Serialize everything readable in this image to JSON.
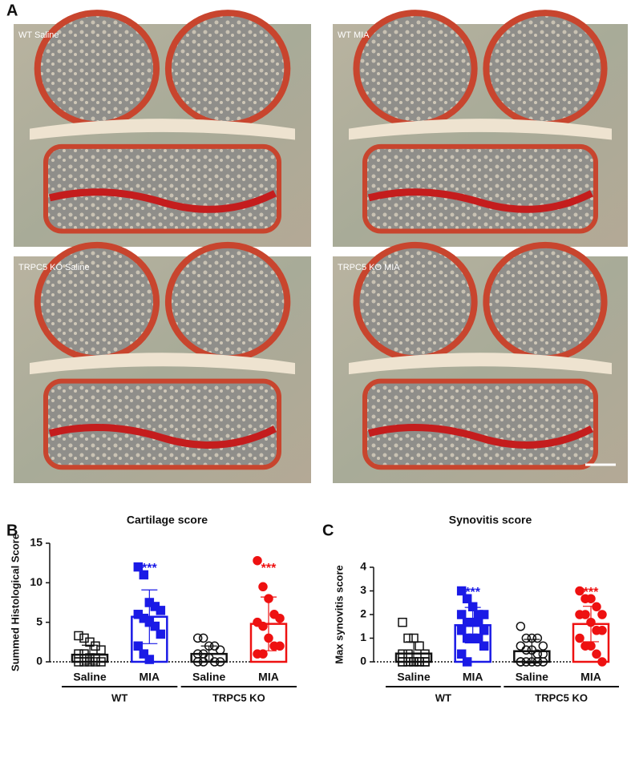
{
  "figure": {
    "panel_label": "A",
    "images": [
      "WT Saline",
      "WT MIA",
      "TRPC5 KO Saline",
      "TRPC5 KO MIA"
    ]
  },
  "chart_data": [
    {
      "type": "bar",
      "panel_label": "B",
      "title": "Cartilage score",
      "y_label": "Summed Histological Score",
      "categories": [
        "Saline",
        "MIA",
        "Saline",
        "MIA"
      ],
      "groups": [
        "WT",
        "TRPC5 KO"
      ],
      "colors": [
        "#111111",
        "#1a1ae6",
        "#111111",
        "#ee1111"
      ],
      "markers": [
        "square",
        "square",
        "circle",
        "circle"
      ],
      "filled": [
        false,
        true,
        false,
        true
      ],
      "values": [
        0.9,
        5.7,
        1.0,
        4.8
      ],
      "errors": [
        1.2,
        3.4,
        1.0,
        3.4
      ],
      "points": [
        [
          3.3,
          3,
          2.5,
          2,
          1.5,
          1,
          1,
          0.5,
          0.5,
          0,
          0,
          0,
          0,
          0
        ],
        [
          12,
          11,
          7.5,
          7,
          6.5,
          6,
          5.5,
          5,
          4.5,
          3.5,
          2,
          1,
          0.3
        ],
        [
          3,
          3,
          2,
          2,
          1.5,
          1,
          1,
          0.5,
          0,
          0,
          0,
          0
        ],
        [
          12.8,
          9.5,
          8,
          6,
          5.5,
          5,
          4.5,
          3,
          2,
          2,
          1,
          1
        ]
      ],
      "significance": [
        null,
        "***",
        null,
        "***"
      ],
      "ylim": [
        0,
        15
      ],
      "yticks": [
        0,
        5,
        10,
        15
      ]
    },
    {
      "type": "bar",
      "panel_label": "C",
      "title": "Synovitis score",
      "y_label": "Max synovitis score",
      "categories": [
        "Saline",
        "MIA",
        "Saline",
        "MIA"
      ],
      "groups": [
        "WT",
        "TRPC5 KO"
      ],
      "colors": [
        "#111111",
        "#1a1ae6",
        "#111111",
        "#ee1111"
      ],
      "markers": [
        "square",
        "square",
        "circle",
        "circle"
      ],
      "filled": [
        false,
        true,
        false,
        true
      ],
      "values": [
        0.35,
        1.55,
        0.45,
        1.6
      ],
      "errors": [
        0.5,
        0.75,
        0.5,
        0.75
      ],
      "points": [
        [
          1.67,
          1,
          1,
          0.67,
          0.33,
          0.33,
          0.33,
          0,
          0,
          0,
          0,
          0,
          0,
          0,
          0,
          0
        ],
        [
          3,
          2.67,
          2.33,
          2,
          2,
          2,
          1.67,
          1.67,
          1.67,
          1.33,
          1.33,
          1,
          1,
          1,
          0.67,
          0.33,
          0
        ],
        [
          1.5,
          1,
          1,
          1,
          0.67,
          0.67,
          0.5,
          0.5,
          0.33,
          0.33,
          0,
          0,
          0,
          0,
          0,
          0
        ],
        [
          3,
          2.67,
          2.67,
          2.33,
          2,
          2,
          2,
          1.67,
          1.33,
          1.33,
          1,
          0.67,
          0.67,
          0.33,
          0
        ]
      ],
      "significance": [
        null,
        "***",
        null,
        "***"
      ],
      "ylim": [
        0,
        4
      ],
      "yticks": [
        0,
        1,
        2,
        3,
        4
      ]
    }
  ]
}
